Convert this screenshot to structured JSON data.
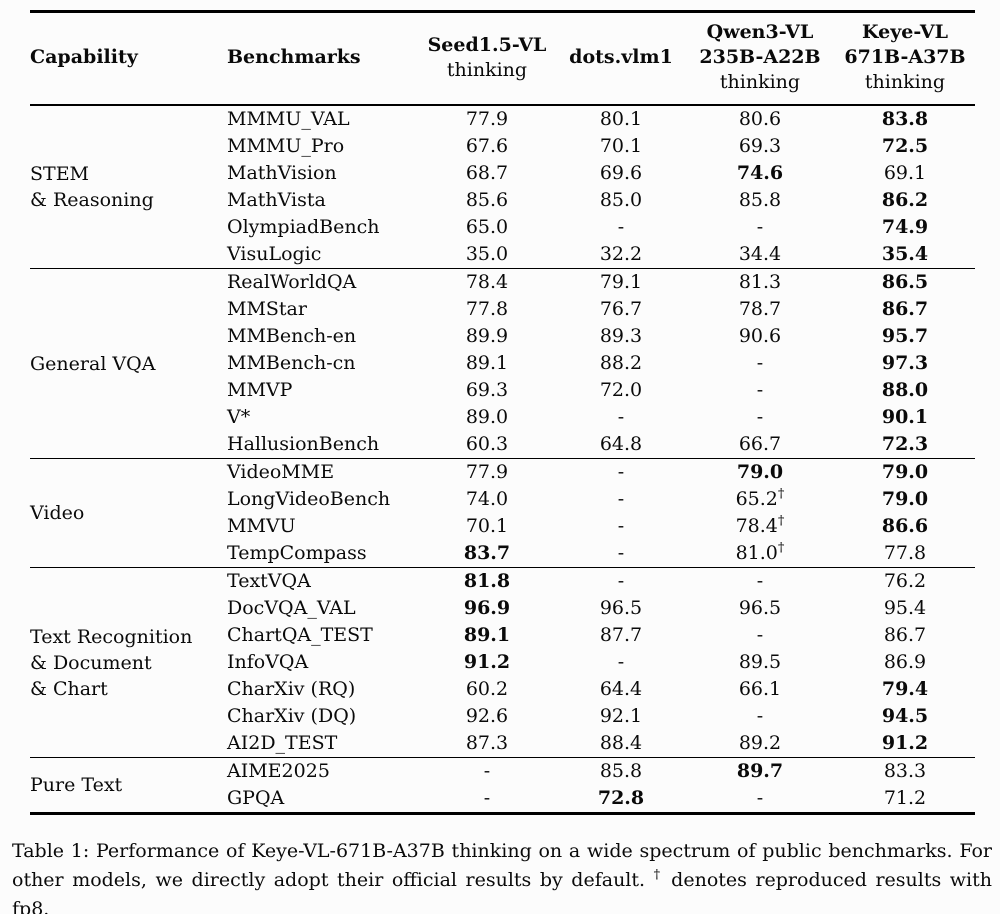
{
  "page": {
    "background": "#fcfcfc",
    "text_color": "#0a0a0a"
  },
  "table": {
    "headers": [
      {
        "lines_bold": [
          "Capability"
        ],
        "align": "left"
      },
      {
        "lines_bold": [
          "Benchmarks"
        ],
        "align": "left"
      },
      {
        "lines_bold": [
          "Seed1.5-VL"
        ],
        "line_normal": "thinking",
        "align": "center"
      },
      {
        "lines_bold": [
          "dots.vlm1"
        ],
        "align": "center"
      },
      {
        "lines_bold": [
          "Qwen3-VL",
          "235B-A22B"
        ],
        "line_normal": "thinking",
        "align": "center"
      },
      {
        "lines_bold": [
          "Keye-VL",
          "671B-A37B"
        ],
        "line_normal": "thinking",
        "align": "center"
      }
    ],
    "sections": [
      {
        "id": "stem-reasoning",
        "capability": "STEM\n& Reasoning",
        "rows": [
          {
            "benchmark": "MMMU_VAL",
            "cells": [
              {
                "v": "77.9"
              },
              {
                "v": "80.1"
              },
              {
                "v": "80.6"
              },
              {
                "v": "83.8",
                "b": true
              }
            ]
          },
          {
            "benchmark": "MMMU_Pro",
            "cells": [
              {
                "v": "67.6"
              },
              {
                "v": "70.1"
              },
              {
                "v": "69.3"
              },
              {
                "v": "72.5",
                "b": true
              }
            ]
          },
          {
            "benchmark": "MathVision",
            "cells": [
              {
                "v": "68.7"
              },
              {
                "v": "69.6"
              },
              {
                "v": "74.6",
                "b": true
              },
              {
                "v": "69.1"
              }
            ]
          },
          {
            "benchmark": "MathVista",
            "cells": [
              {
                "v": "85.6"
              },
              {
                "v": "85.0"
              },
              {
                "v": "85.8"
              },
              {
                "v": "86.2",
                "b": true
              }
            ]
          },
          {
            "benchmark": "OlympiadBench",
            "cells": [
              {
                "v": "65.0"
              },
              {
                "v": "-"
              },
              {
                "v": "-"
              },
              {
                "v": "74.9",
                "b": true
              }
            ]
          },
          {
            "benchmark": "VisuLogic",
            "cells": [
              {
                "v": "35.0"
              },
              {
                "v": "32.2"
              },
              {
                "v": "34.4"
              },
              {
                "v": "35.4",
                "b": true
              }
            ]
          }
        ]
      },
      {
        "id": "general-vqa",
        "capability": "General VQA",
        "rows": [
          {
            "benchmark": "RealWorldQA",
            "cells": [
              {
                "v": "78.4"
              },
              {
                "v": "79.1"
              },
              {
                "v": "81.3"
              },
              {
                "v": "86.5",
                "b": true
              }
            ]
          },
          {
            "benchmark": "MMStar",
            "cells": [
              {
                "v": "77.8"
              },
              {
                "v": "76.7"
              },
              {
                "v": "78.7"
              },
              {
                "v": "86.7",
                "b": true
              }
            ]
          },
          {
            "benchmark": "MMBench-en",
            "cells": [
              {
                "v": "89.9"
              },
              {
                "v": "89.3"
              },
              {
                "v": "90.6"
              },
              {
                "v": "95.7",
                "b": true
              }
            ]
          },
          {
            "benchmark": "MMBench-cn",
            "cells": [
              {
                "v": "89.1"
              },
              {
                "v": "88.2"
              },
              {
                "v": "-"
              },
              {
                "v": "97.3",
                "b": true
              }
            ]
          },
          {
            "benchmark": "MMVP",
            "cells": [
              {
                "v": "69.3"
              },
              {
                "v": "72.0"
              },
              {
                "v": "-"
              },
              {
                "v": "88.0",
                "b": true
              }
            ]
          },
          {
            "benchmark": "V*",
            "cells": [
              {
                "v": "89.0"
              },
              {
                "v": "-"
              },
              {
                "v": "-"
              },
              {
                "v": "90.1",
                "b": true
              }
            ]
          },
          {
            "benchmark": "HallusionBench",
            "cells": [
              {
                "v": "60.3"
              },
              {
                "v": "64.8"
              },
              {
                "v": "66.7"
              },
              {
                "v": "72.3",
                "b": true
              }
            ]
          }
        ]
      },
      {
        "id": "video",
        "capability": "Video",
        "rows": [
          {
            "benchmark": "VideoMME",
            "cells": [
              {
                "v": "77.9"
              },
              {
                "v": "-"
              },
              {
                "v": "79.0",
                "b": true
              },
              {
                "v": "79.0",
                "b": true
              }
            ]
          },
          {
            "benchmark": "LongVideoBench",
            "cells": [
              {
                "v": "74.0"
              },
              {
                "v": "-"
              },
              {
                "v": "65.2",
                "sup": "†"
              },
              {
                "v": "79.0",
                "b": true
              }
            ]
          },
          {
            "benchmark": "MMVU",
            "cells": [
              {
                "v": "70.1"
              },
              {
                "v": "-"
              },
              {
                "v": "78.4",
                "sup": "†"
              },
              {
                "v": "86.6",
                "b": true
              }
            ]
          },
          {
            "benchmark": "TempCompass",
            "cells": [
              {
                "v": "83.7",
                "b": true
              },
              {
                "v": "-"
              },
              {
                "v": "81.0",
                "sup": "†"
              },
              {
                "v": "77.8"
              }
            ]
          }
        ]
      },
      {
        "id": "text-doc-chart",
        "capability": "Text Recognition\n& Document\n& Chart",
        "rows": [
          {
            "benchmark": "TextVQA",
            "cells": [
              {
                "v": "81.8",
                "b": true
              },
              {
                "v": "-"
              },
              {
                "v": "-"
              },
              {
                "v": "76.2"
              }
            ]
          },
          {
            "benchmark": "DocVQA_VAL",
            "cells": [
              {
                "v": "96.9",
                "b": true
              },
              {
                "v": "96.5"
              },
              {
                "v": "96.5"
              },
              {
                "v": "95.4"
              }
            ]
          },
          {
            "benchmark": "ChartQA_TEST",
            "cells": [
              {
                "v": "89.1",
                "b": true
              },
              {
                "v": "87.7"
              },
              {
                "v": "-"
              },
              {
                "v": "86.7"
              }
            ]
          },
          {
            "benchmark": "InfoVQA",
            "cells": [
              {
                "v": "91.2",
                "b": true
              },
              {
                "v": "-"
              },
              {
                "v": "89.5"
              },
              {
                "v": "86.9"
              }
            ]
          },
          {
            "benchmark": "CharXiv (RQ)",
            "cells": [
              {
                "v": "60.2"
              },
              {
                "v": "64.4"
              },
              {
                "v": "66.1"
              },
              {
                "v": "79.4",
                "b": true
              }
            ]
          },
          {
            "benchmark": "CharXiv (DQ)",
            "cells": [
              {
                "v": "92.6"
              },
              {
                "v": "92.1"
              },
              {
                "v": "-"
              },
              {
                "v": "94.5",
                "b": true
              }
            ]
          },
          {
            "benchmark": "AI2D_TEST",
            "cells": [
              {
                "v": "87.3"
              },
              {
                "v": "88.4"
              },
              {
                "v": "89.2"
              },
              {
                "v": "91.2",
                "b": true
              }
            ]
          }
        ]
      },
      {
        "id": "pure-text",
        "capability": "Pure Text",
        "rows": [
          {
            "benchmark": "AIME2025",
            "cells": [
              {
                "v": "-"
              },
              {
                "v": "85.8"
              },
              {
                "v": "89.7",
                "b": true
              },
              {
                "v": "83.3"
              }
            ]
          },
          {
            "benchmark": "GPQA",
            "cells": [
              {
                "v": "-"
              },
              {
                "v": "72.8",
                "b": true
              },
              {
                "v": "-"
              },
              {
                "v": "71.2"
              }
            ]
          }
        ]
      }
    ]
  },
  "caption": {
    "text_before": "Table 1: Performance of Keye-VL-671B-A37B thinking on a wide spectrum of public benchmarks. For other models, we directly adopt their official results by default. ",
    "dagger": "†",
    "text_after": " denotes reproduced results with fp8."
  }
}
